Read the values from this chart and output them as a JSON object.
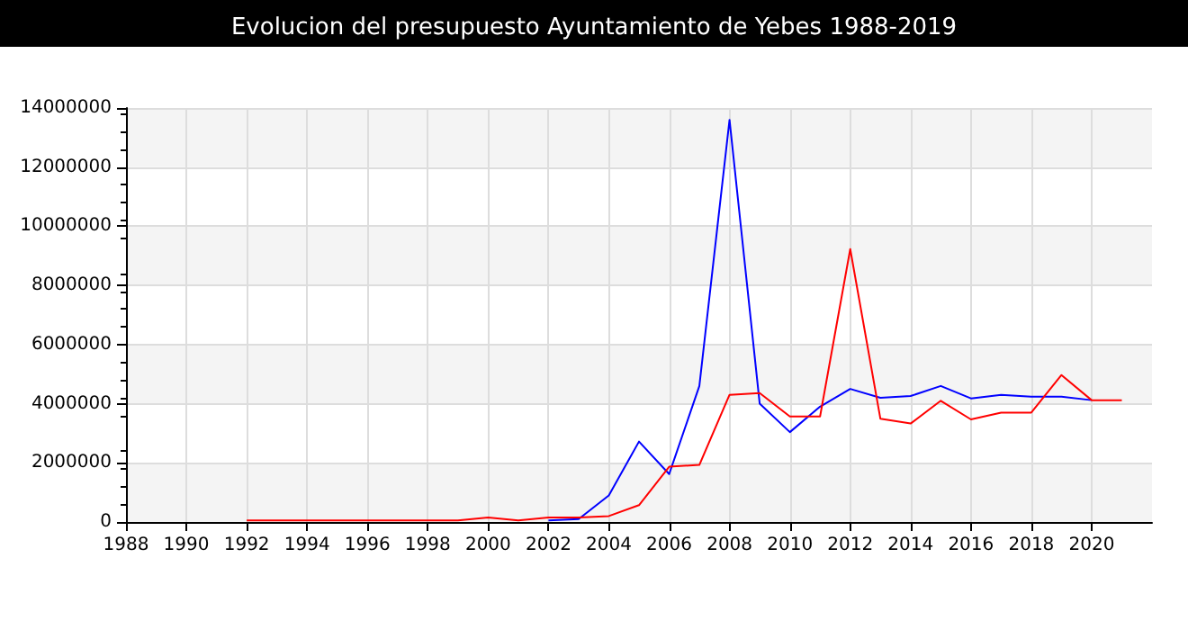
{
  "chart_data": {
    "type": "line",
    "title": "Evolucion del presupuesto Ayuntamiento de Yebes 1988-2019",
    "xlim": [
      1988,
      2022
    ],
    "xticks": [
      1988,
      1990,
      1992,
      1994,
      1996,
      1998,
      2000,
      2002,
      2004,
      2006,
      2008,
      2010,
      2012,
      2014,
      2016,
      2018,
      2020
    ],
    "ylim": [
      0,
      14000000
    ],
    "yticks": [
      0,
      2000000,
      4000000,
      6000000,
      8000000,
      10000000,
      12000000,
      14000000
    ],
    "grid": true,
    "marker": "none",
    "line_style": "solid",
    "series": [
      {
        "color": "#0000ff",
        "x": [
          2002,
          2003,
          2004,
          2005,
          2006,
          2007,
          2008,
          2009,
          2010,
          2011,
          2012,
          2013,
          2014,
          2015,
          2016,
          2017,
          2018,
          2019,
          2020
        ],
        "values": [
          50000,
          100000,
          900000,
          2720000,
          1620000,
          4600000,
          13600000,
          4000000,
          3040000,
          3900000,
          4500000,
          4200000,
          4260000,
          4600000,
          4180000,
          4300000,
          4240000,
          4240000,
          4120000
        ]
      },
      {
        "color": "#ff0000",
        "x": [
          1992,
          1993,
          1994,
          1995,
          1996,
          1997,
          1998,
          1999,
          2000,
          2001,
          2002,
          2003,
          2004,
          2005,
          2006,
          2007,
          2008,
          2009,
          2010,
          2011,
          2012,
          2013,
          2014,
          2015,
          2016,
          2017,
          2018,
          2019,
          2020,
          2021
        ],
        "values": [
          50000,
          50000,
          50000,
          50000,
          50000,
          50000,
          50000,
          50000,
          150000,
          50000,
          150000,
          150000,
          200000,
          570000,
          1870000,
          1930000,
          4300000,
          4360000,
          3570000,
          3570000,
          9230000,
          3490000,
          3330000,
          4100000,
          3470000,
          3700000,
          3700000,
          4970000,
          4120000,
          4120000
        ]
      }
    ]
  }
}
